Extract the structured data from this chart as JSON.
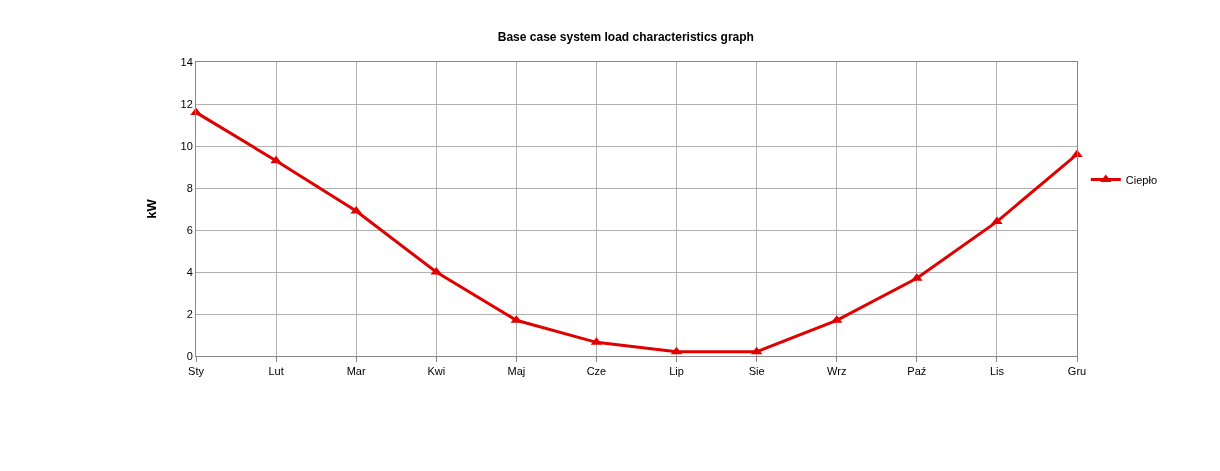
{
  "chart_data": {
    "type": "line",
    "title": "Base case system load characteristics graph",
    "ylabel": "kW",
    "categories": [
      "Sty",
      "Lut",
      "Mar",
      "Kwi",
      "Maj",
      "Cze",
      "Lip",
      "Sie",
      "Wrz",
      "Paź",
      "Lis",
      "Gru"
    ],
    "series": [
      {
        "name": "Ciepło",
        "color": "#e00000",
        "values": [
          11.6,
          9.3,
          6.9,
          4.0,
          1.7,
          0.65,
          0.2,
          0.2,
          1.7,
          3.7,
          6.4,
          9.6
        ]
      }
    ],
    "ylim": [
      0,
      14
    ],
    "yticks": [
      0,
      2,
      4,
      6,
      8,
      10,
      12,
      14
    ],
    "grid": true,
    "legend": "right",
    "marker": "triangle",
    "line_style": "solid"
  }
}
